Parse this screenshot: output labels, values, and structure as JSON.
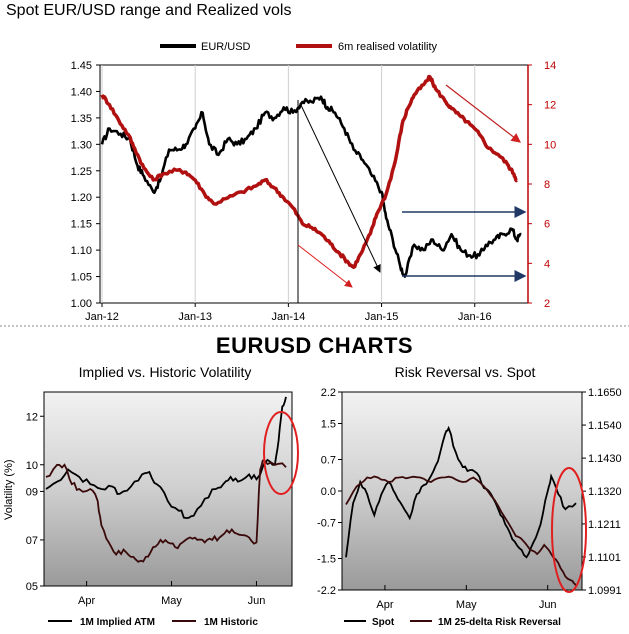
{
  "header": {
    "top_title": "Spot EUR/USD range and Realized vols",
    "section_title": "EURUSD CHARTS"
  },
  "chart_data": [
    {
      "type": "line",
      "title": "Spot EUR/USD range and Realized vols",
      "x": [
        "Jan-12",
        "Jan-13",
        "Jan-14",
        "Jan-15",
        "Jan-16"
      ],
      "ylim": [
        1.0,
        1.45
      ],
      "y2lim": [
        2,
        14
      ],
      "yticks": [
        "1.45",
        "1.40",
        "1.35",
        "1.30",
        "1.25",
        "1.20",
        "1.15",
        "1.10",
        "1.05",
        "1.00"
      ],
      "y2ticks": [
        "14",
        "12",
        "10",
        "8",
        "6",
        "4",
        "2"
      ],
      "legend": "top",
      "series": [
        {
          "name": "EUR/USD",
          "color": "#000000",
          "axis": "left",
          "points": [
            [
              2012.0,
              1.3
            ],
            [
              2012.08,
              1.33
            ],
            [
              2012.2,
              1.32
            ],
            [
              2012.3,
              1.31
            ],
            [
              2012.38,
              1.26
            ],
            [
              2012.45,
              1.24
            ],
            [
              2012.55,
              1.21
            ],
            [
              2012.62,
              1.23
            ],
            [
              2012.72,
              1.29
            ],
            [
              2012.82,
              1.29
            ],
            [
              2012.9,
              1.3
            ],
            [
              2013.0,
              1.33
            ],
            [
              2013.08,
              1.36
            ],
            [
              2013.15,
              1.3
            ],
            [
              2013.25,
              1.28
            ],
            [
              2013.35,
              1.31
            ],
            [
              2013.45,
              1.3
            ],
            [
              2013.55,
              1.31
            ],
            [
              2013.65,
              1.33
            ],
            [
              2013.75,
              1.36
            ],
            [
              2013.85,
              1.35
            ],
            [
              2013.95,
              1.37
            ],
            [
              2014.05,
              1.36
            ],
            [
              2014.15,
              1.38
            ],
            [
              2014.25,
              1.38
            ],
            [
              2014.35,
              1.39
            ],
            [
              2014.42,
              1.37
            ],
            [
              2014.5,
              1.36
            ],
            [
              2014.6,
              1.33
            ],
            [
              2014.7,
              1.29
            ],
            [
              2014.8,
              1.27
            ],
            [
              2014.9,
              1.24
            ],
            [
              2015.0,
              1.21
            ],
            [
              2015.05,
              1.16
            ],
            [
              2015.12,
              1.12
            ],
            [
              2015.2,
              1.07
            ],
            [
              2015.25,
              1.05
            ],
            [
              2015.35,
              1.11
            ],
            [
              2015.45,
              1.1
            ],
            [
              2015.55,
              1.12
            ],
            [
              2015.65,
              1.1
            ],
            [
              2015.75,
              1.13
            ],
            [
              2015.85,
              1.1
            ],
            [
              2015.95,
              1.09
            ],
            [
              2016.05,
              1.09
            ],
            [
              2016.12,
              1.11
            ],
            [
              2016.22,
              1.12
            ],
            [
              2016.3,
              1.13
            ],
            [
              2016.4,
              1.14
            ],
            [
              2016.45,
              1.12
            ],
            [
              2016.5,
              1.13
            ]
          ]
        },
        {
          "name": "6m realised volatility",
          "color": "#b01010",
          "axis": "right",
          "points": [
            [
              2012.0,
              12.5
            ],
            [
              2012.08,
              12.0
            ],
            [
              2012.18,
              11.2
            ],
            [
              2012.28,
              10.5
            ],
            [
              2012.35,
              9.8
            ],
            [
              2012.45,
              8.8
            ],
            [
              2012.55,
              8.2
            ],
            [
              2012.65,
              8.5
            ],
            [
              2012.8,
              8.7
            ],
            [
              2012.9,
              8.6
            ],
            [
              2013.0,
              8.2
            ],
            [
              2013.1,
              7.5
            ],
            [
              2013.2,
              7.0
            ],
            [
              2013.35,
              7.3
            ],
            [
              2013.5,
              7.6
            ],
            [
              2013.65,
              7.9
            ],
            [
              2013.75,
              8.2
            ],
            [
              2013.85,
              7.8
            ],
            [
              2013.95,
              7.3
            ],
            [
              2014.05,
              6.8
            ],
            [
              2014.15,
              6.0
            ],
            [
              2014.25,
              5.8
            ],
            [
              2014.35,
              5.5
            ],
            [
              2014.45,
              5.0
            ],
            [
              2014.55,
              4.5
            ],
            [
              2014.65,
              4.0
            ],
            [
              2014.7,
              3.8
            ],
            [
              2014.78,
              4.5
            ],
            [
              2014.88,
              5.5
            ],
            [
              2014.95,
              6.5
            ],
            [
              2015.05,
              7.5
            ],
            [
              2015.15,
              9.2
            ],
            [
              2015.22,
              11.0
            ],
            [
              2015.28,
              11.8
            ],
            [
              2015.35,
              12.5
            ],
            [
              2015.45,
              13.0
            ],
            [
              2015.52,
              13.4
            ],
            [
              2015.58,
              12.8
            ],
            [
              2015.68,
              12.2
            ],
            [
              2015.75,
              11.8
            ],
            [
              2015.85,
              11.4
            ],
            [
              2015.95,
              11.0
            ],
            [
              2016.05,
              10.5
            ],
            [
              2016.15,
              9.8
            ],
            [
              2016.25,
              9.5
            ],
            [
              2016.35,
              9.0
            ],
            [
              2016.42,
              8.5
            ],
            [
              2016.45,
              8.2
            ]
          ]
        }
      ]
    },
    {
      "type": "line",
      "title": "Implied vs. Historic Volatility",
      "ylabel": "Volatility (%)",
      "x": [
        "Apr",
        "May",
        "Jun"
      ],
      "ylim": [
        5,
        13
      ],
      "yticks": [
        "12",
        "10",
        "09",
        "07",
        "05"
      ],
      "legend": "bottom",
      "series": [
        {
          "name": "1M Implied ATM",
          "color": "#000000",
          "points": [
            [
              0,
              9.0
            ],
            [
              3,
              9.3
            ],
            [
              6,
              9.8
            ],
            [
              9,
              9.5
            ],
            [
              12,
              9.2
            ],
            [
              15,
              9.0
            ],
            [
              18,
              9.1
            ],
            [
              20,
              8.8
            ],
            [
              23,
              9.1
            ],
            [
              26,
              9.6
            ],
            [
              28,
              9.7
            ],
            [
              30,
              9.2
            ],
            [
              33,
              8.5
            ],
            [
              36,
              8.1
            ],
            [
              38,
              7.8
            ],
            [
              40,
              7.9
            ],
            [
              43,
              8.6
            ],
            [
              46,
              9.0
            ],
            [
              48,
              9.2
            ],
            [
              50,
              9.5
            ],
            [
              52,
              9.3
            ],
            [
              55,
              9.6
            ],
            [
              57,
              9.4
            ],
            [
              60,
              10.2
            ],
            [
              62,
              10.0
            ],
            [
              63,
              11.0
            ],
            [
              64,
              12.4
            ],
            [
              65,
              12.8
            ]
          ]
        },
        {
          "name": "1M Historic",
          "color": "#3a0a0a",
          "points": [
            [
              0,
              9.5
            ],
            [
              3,
              10.0
            ],
            [
              5,
              10.0
            ],
            [
              7,
              9.2
            ],
            [
              9,
              9.0
            ],
            [
              12,
              9.0
            ],
            [
              14,
              8.5
            ],
            [
              15,
              7.5
            ],
            [
              17,
              6.8
            ],
            [
              19,
              6.3
            ],
            [
              21,
              6.5
            ],
            [
              23,
              6.2
            ],
            [
              25,
              6.0
            ],
            [
              27,
              6.2
            ],
            [
              29,
              6.6
            ],
            [
              31,
              6.9
            ],
            [
              33,
              6.8
            ],
            [
              35,
              6.6
            ],
            [
              37,
              6.8
            ],
            [
              39,
              7.0
            ],
            [
              41,
              6.9
            ],
            [
              43,
              6.8
            ],
            [
              45,
              6.9
            ],
            [
              47,
              7.0
            ],
            [
              49,
              7.3
            ],
            [
              51,
              7.2
            ],
            [
              53,
              7.1
            ],
            [
              55,
              7.0
            ],
            [
              57,
              6.8
            ],
            [
              58,
              9.8
            ],
            [
              59,
              10.2
            ],
            [
              62,
              10.0
            ],
            [
              65,
              9.9
            ]
          ]
        }
      ]
    },
    {
      "type": "line",
      "title": "Risk Reversal vs. Spot",
      "x": [
        "Apr",
        "May",
        "Jun"
      ],
      "ylim": [
        -2.2,
        2.2
      ],
      "y2lim": [
        1.0991,
        1.165
      ],
      "yticks": [
        "2.2",
        "1.5",
        "0.7",
        "0.0",
        "-0.7",
        "-1.5",
        "-2.2"
      ],
      "y2ticks": [
        "1.1650",
        "1.1540",
        "1.1430",
        "1.1320",
        "1.1211",
        "1.1101",
        "1.0991"
      ],
      "legend": "bottom",
      "series": [
        {
          "name": "Spot",
          "color": "#000000",
          "axis": "right",
          "points": [
            [
              0,
              1.11
            ],
            [
              2,
              1.128
            ],
            [
              4,
              1.135
            ],
            [
              6,
              1.131
            ],
            [
              8,
              1.124
            ],
            [
              10,
              1.131
            ],
            [
              12,
              1.135
            ],
            [
              14,
              1.131
            ],
            [
              16,
              1.127
            ],
            [
              18,
              1.123
            ],
            [
              20,
              1.131
            ],
            [
              22,
              1.134
            ],
            [
              24,
              1.137
            ],
            [
              26,
              1.142
            ],
            [
              28,
              1.151
            ],
            [
              29,
              1.153
            ],
            [
              31,
              1.145
            ],
            [
              33,
              1.14
            ],
            [
              35,
              1.139
            ],
            [
              37,
              1.138
            ],
            [
              39,
              1.133
            ],
            [
              41,
              1.131
            ],
            [
              43,
              1.126
            ],
            [
              45,
              1.121
            ],
            [
              47,
              1.116
            ],
            [
              49,
              1.113
            ],
            [
              51,
              1.11
            ],
            [
              53,
              1.115
            ],
            [
              55,
              1.121
            ],
            [
              57,
              1.132
            ],
            [
              58,
              1.137
            ],
            [
              60,
              1.131
            ],
            [
              62,
              1.126
            ],
            [
              65,
              1.128
            ]
          ]
        },
        {
          "name": "1M 25-delta Risk Reversal",
          "color": "#3a0a0a",
          "axis": "left",
          "points": [
            [
              0,
              -0.3
            ],
            [
              3,
              0.1
            ],
            [
              6,
              0.3
            ],
            [
              9,
              0.3
            ],
            [
              12,
              0.2
            ],
            [
              15,
              0.3
            ],
            [
              18,
              0.3
            ],
            [
              21,
              0.3
            ],
            [
              24,
              0.2
            ],
            [
              27,
              0.3
            ],
            [
              30,
              0.3
            ],
            [
              33,
              0.2
            ],
            [
              36,
              0.3
            ],
            [
              39,
              0.1
            ],
            [
              42,
              -0.2
            ],
            [
              45,
              -0.6
            ],
            [
              48,
              -1.0
            ],
            [
              50,
              -1.1
            ],
            [
              52,
              -1.3
            ],
            [
              54,
              -1.4
            ],
            [
              56,
              -1.2
            ],
            [
              58,
              -1.4
            ],
            [
              60,
              -1.6
            ],
            [
              62,
              -1.9
            ],
            [
              64,
              -2.0
            ],
            [
              65,
              -2.1
            ]
          ]
        }
      ]
    }
  ]
}
